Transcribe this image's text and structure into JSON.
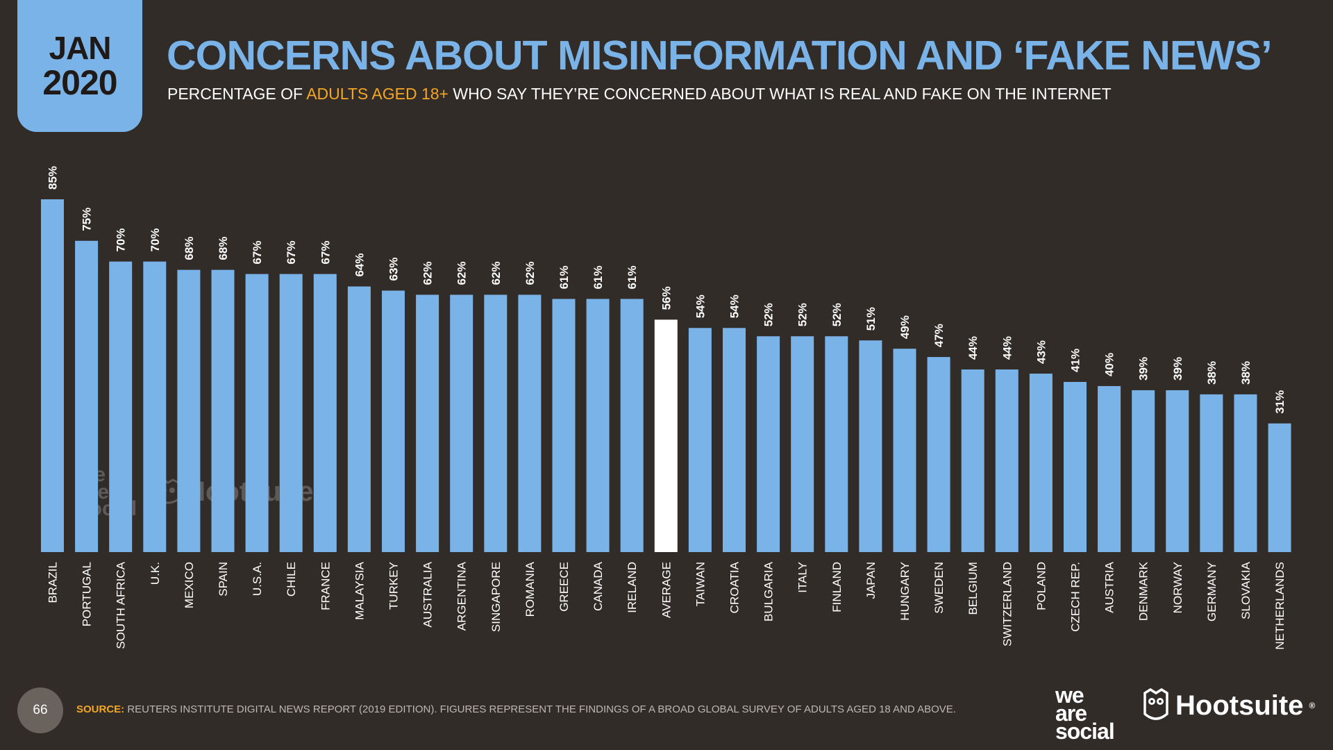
{
  "header": {
    "month": "JAN",
    "year": "2020",
    "title": "CONCERNS ABOUT MISINFORMATION AND ‘FAKE NEWS’",
    "subtitle_pre": "PERCENTAGE OF ",
    "subtitle_highlight": "ADULTS AGED 18+",
    "subtitle_post": " WHO SAY THEY’RE CONCERNED ABOUT WHAT IS REAL AND FAKE ON THE INTERNET"
  },
  "colors": {
    "background": "#322c29",
    "bar": "#7ab3e8",
    "average_bar": "#ffffff",
    "highlight": "#f5a623"
  },
  "chart_data": {
    "type": "bar",
    "title": "CONCERNS ABOUT MISINFORMATION AND ‘FAKE NEWS’",
    "ylabel": "",
    "xlabel": "",
    "ylim": [
      0,
      85
    ],
    "grid": false,
    "categories": [
      "BRAZIL",
      "PORTUGAL",
      "SOUTH AFRICA",
      "U.K.",
      "MEXICO",
      "SPAIN",
      "U.S.A.",
      "CHILE",
      "FRANCE",
      "MALAYSIA",
      "TURKEY",
      "AUSTRALIA",
      "ARGENTINA",
      "SINGAPORE",
      "ROMANIA",
      "GREECE",
      "CANADA",
      "IRELAND",
      "AVERAGE",
      "TAIWAN",
      "CROATIA",
      "BULGARIA",
      "ITALY",
      "FINLAND",
      "JAPAN",
      "HUNGARY",
      "SWEDEN",
      "BELGIUM",
      "SWITZERLAND",
      "POLAND",
      "CZECH REP.",
      "AUSTRIA",
      "DENMARK",
      "NORWAY",
      "GERMANY",
      "SLOVAKIA",
      "NETHERLANDS"
    ],
    "values": [
      85,
      75,
      70,
      70,
      68,
      68,
      67,
      67,
      67,
      64,
      63,
      62,
      62,
      62,
      62,
      61,
      61,
      61,
      56,
      54,
      54,
      52,
      52,
      52,
      51,
      49,
      47,
      44,
      44,
      43,
      41,
      40,
      39,
      39,
      38,
      38,
      31
    ],
    "data_labels": [
      "85%",
      "75%",
      "70%",
      "70%",
      "68%",
      "68%",
      "67%",
      "67%",
      "67%",
      "64%",
      "63%",
      "62%",
      "62%",
      "62%",
      "62%",
      "61%",
      "61%",
      "61%",
      "56%",
      "54%",
      "54%",
      "52%",
      "52%",
      "52%",
      "51%",
      "49%",
      "47%",
      "44%",
      "44%",
      "43%",
      "41%",
      "40%",
      "39%",
      "39%",
      "38%",
      "38%",
      "31%"
    ],
    "highlighted_category": "AVERAGE"
  },
  "watermark": {
    "was": [
      "we",
      "are.",
      "social"
    ],
    "hootsuite": "Hootsuite"
  },
  "footer": {
    "page_number": "66",
    "source_label": "SOURCE:",
    "source_text": " REUTERS INSTITUTE DIGITAL NEWS REPORT (2019 EDITION). FIGURES REPRESENT THE FINDINGS OF A BROAD GLOBAL SURVEY OF ADULTS AGED 18 AND ABOVE.",
    "logo_was": [
      "we",
      "are",
      "social"
    ],
    "logo_hootsuite": "Hootsuite",
    "logo_hootsuite_mark": "®"
  }
}
